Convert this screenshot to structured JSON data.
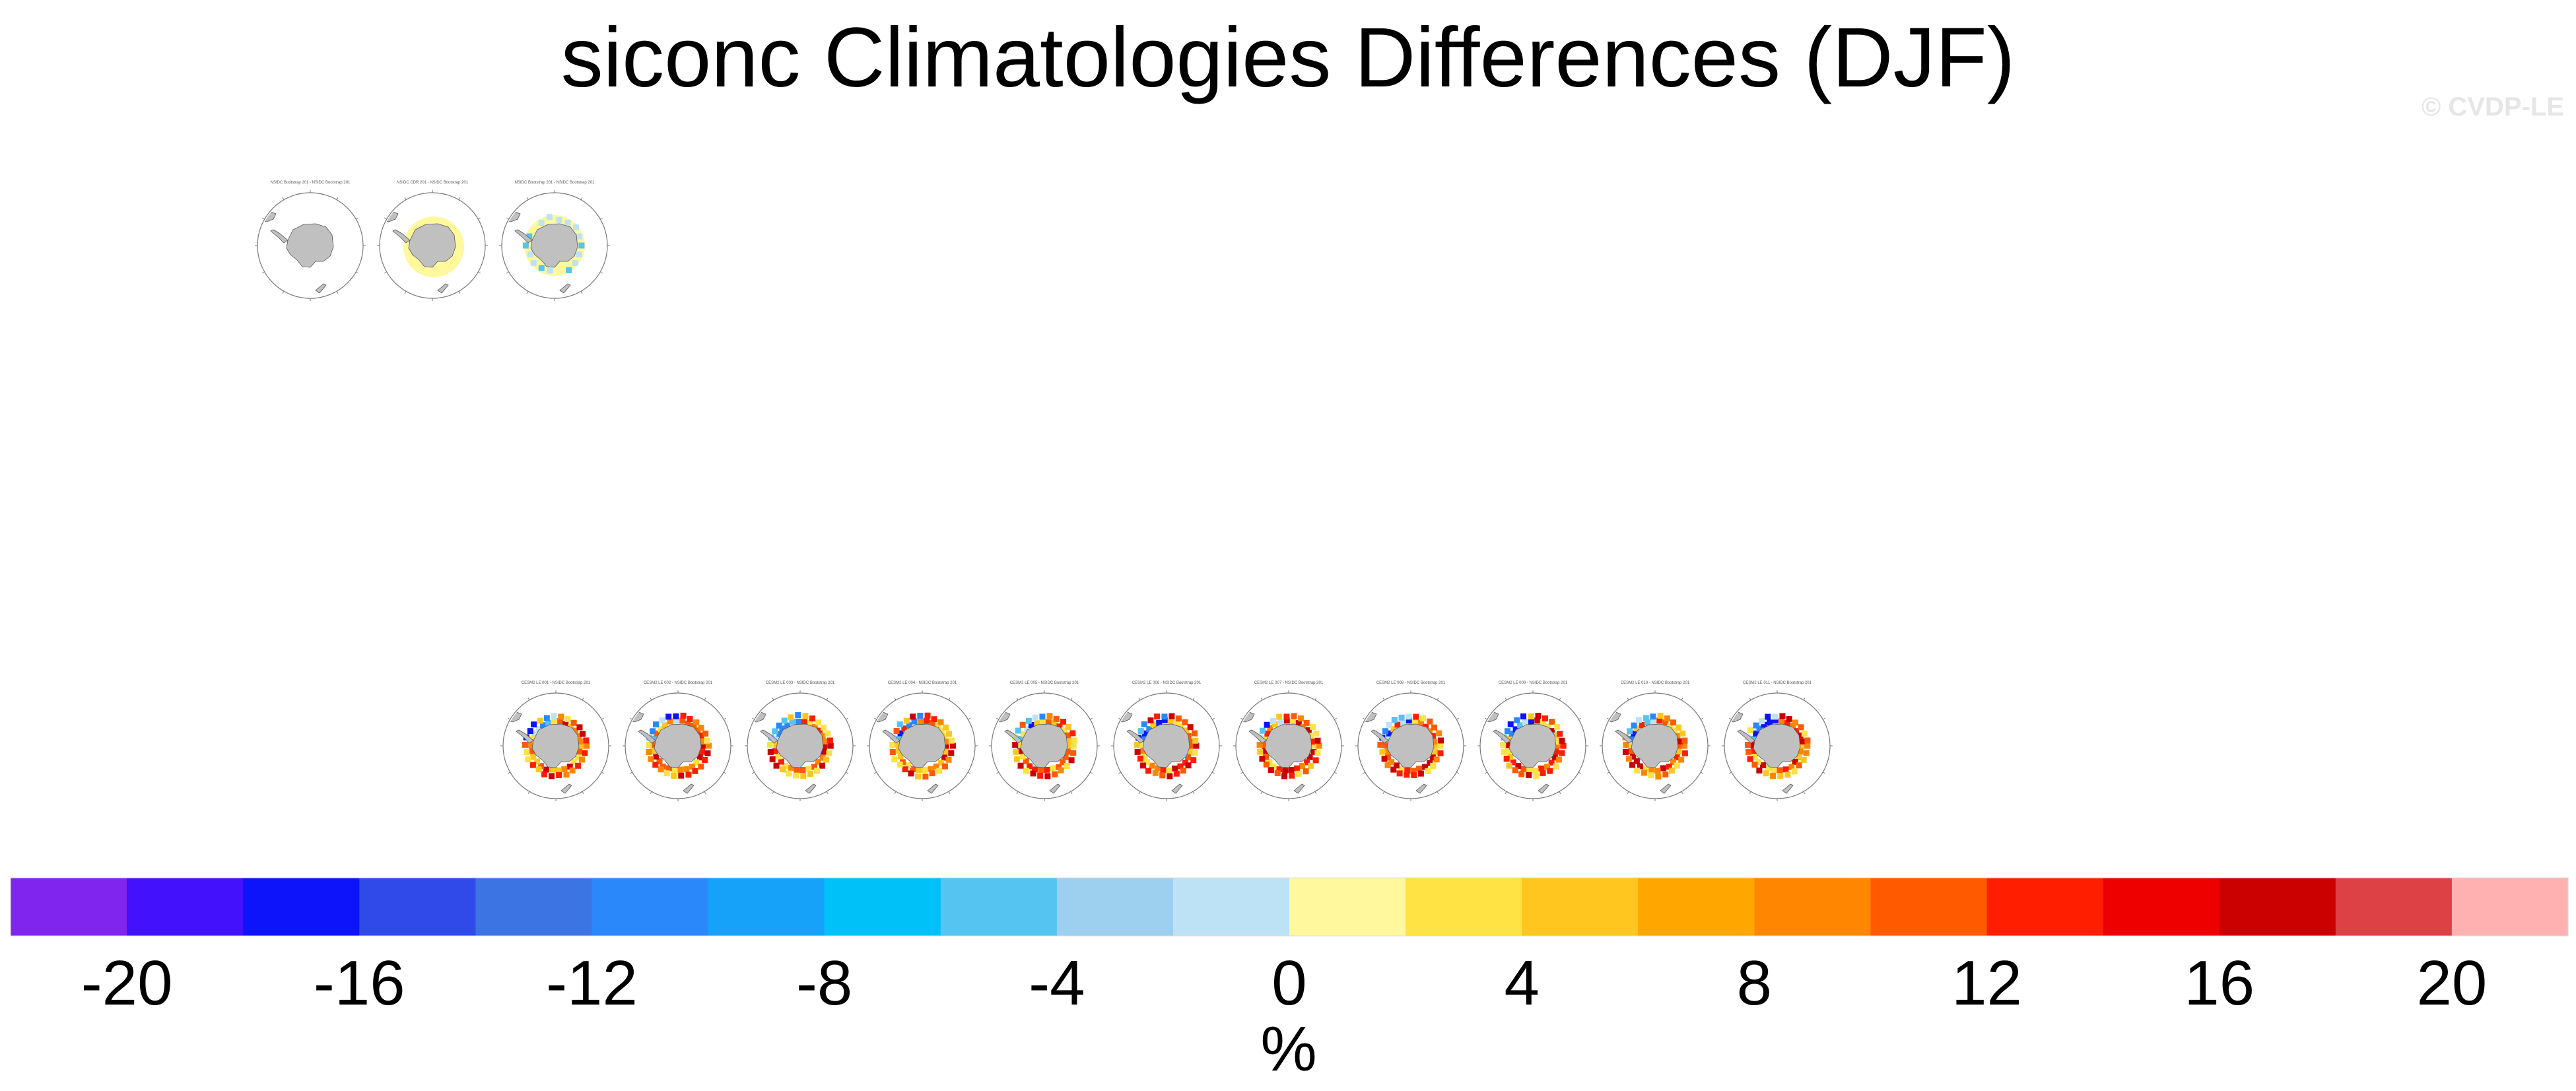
{
  "title": "siconc Climatologies Differences (DJF)",
  "watermark": "© CVDP-LE",
  "chart_data": {
    "type": "heatmap",
    "projection": "south-polar-stereographic",
    "variable": "siconc",
    "season": "DJF",
    "panel_rows": [
      {
        "panels": [
          {
            "pattern": "none",
            "caption": "NSIDC Bootstrap 201 - NSIDC Bootstrap 201"
          },
          {
            "pattern": "light",
            "caption": "NSIDC CDR 201 - NSIDC Bootstrap 201"
          },
          {
            "pattern": "mixed",
            "caption": "NSIDC Bootstrap 201 - NSIDC Bootstrap 201"
          }
        ]
      },
      {
        "panels": [
          {
            "pattern": "strong",
            "caption": "CESM2 LE 001 - NSIDC Bootstrap 201"
          },
          {
            "pattern": "strong",
            "caption": "CESM2 LE 002 - NSIDC Bootstrap 201"
          },
          {
            "pattern": "strong",
            "caption": "CESM2 LE 003 - NSIDC Bootstrap 201"
          },
          {
            "pattern": "strong",
            "caption": "CESM2 LE 004 - NSIDC Bootstrap 201"
          },
          {
            "pattern": "strong",
            "caption": "CESM2 LE 005 - NSIDC Bootstrap 201"
          },
          {
            "pattern": "strong",
            "caption": "CESM2 LE 006 - NSIDC Bootstrap 201"
          },
          {
            "pattern": "strong",
            "caption": "CESM2 LE 007 - NSIDC Bootstrap 201"
          },
          {
            "pattern": "strong",
            "caption": "CESM2 LE 008 - NSIDC Bootstrap 201"
          },
          {
            "pattern": "strong",
            "caption": "CESM2 LE 009 - NSIDC Bootstrap 201"
          },
          {
            "pattern": "strong",
            "caption": "CESM2 LE 010 - NSIDC Bootstrap 201"
          },
          {
            "pattern": "strong",
            "caption": "CESM2 LE 011 - NSIDC Bootstrap 201"
          }
        ]
      }
    ],
    "colorbar": {
      "levels": [
        -22,
        -20,
        -18,
        -16,
        -14,
        -12,
        -10,
        -8,
        -6,
        -4,
        -2,
        0,
        2,
        4,
        6,
        8,
        10,
        12,
        14,
        16,
        18,
        20,
        22
      ],
      "colors": [
        "#7f25ee",
        "#4311fc",
        "#0d14fa",
        "#2f4ae8",
        "#3c74e3",
        "#2a88fa",
        "#16a2f8",
        "#00c2f8",
        "#55c4f0",
        "#9cd0ee",
        "#bde2f5",
        "#fff89c",
        "#ffe244",
        "#ffc620",
        "#ffa600",
        "#ff8600",
        "#ff5a00",
        "#ff1e00",
        "#ee0000",
        "#cb0000",
        "#dd4045",
        "#feb1b0"
      ],
      "tick_labels": [
        "-20",
        "-16",
        "-12",
        "-8",
        "-4",
        "0",
        "4",
        "8",
        "12",
        "16",
        "20"
      ],
      "tick_values": [
        -20,
        -16,
        -12,
        -8,
        -4,
        0,
        4,
        8,
        12,
        16,
        20
      ],
      "units": "%"
    }
  }
}
